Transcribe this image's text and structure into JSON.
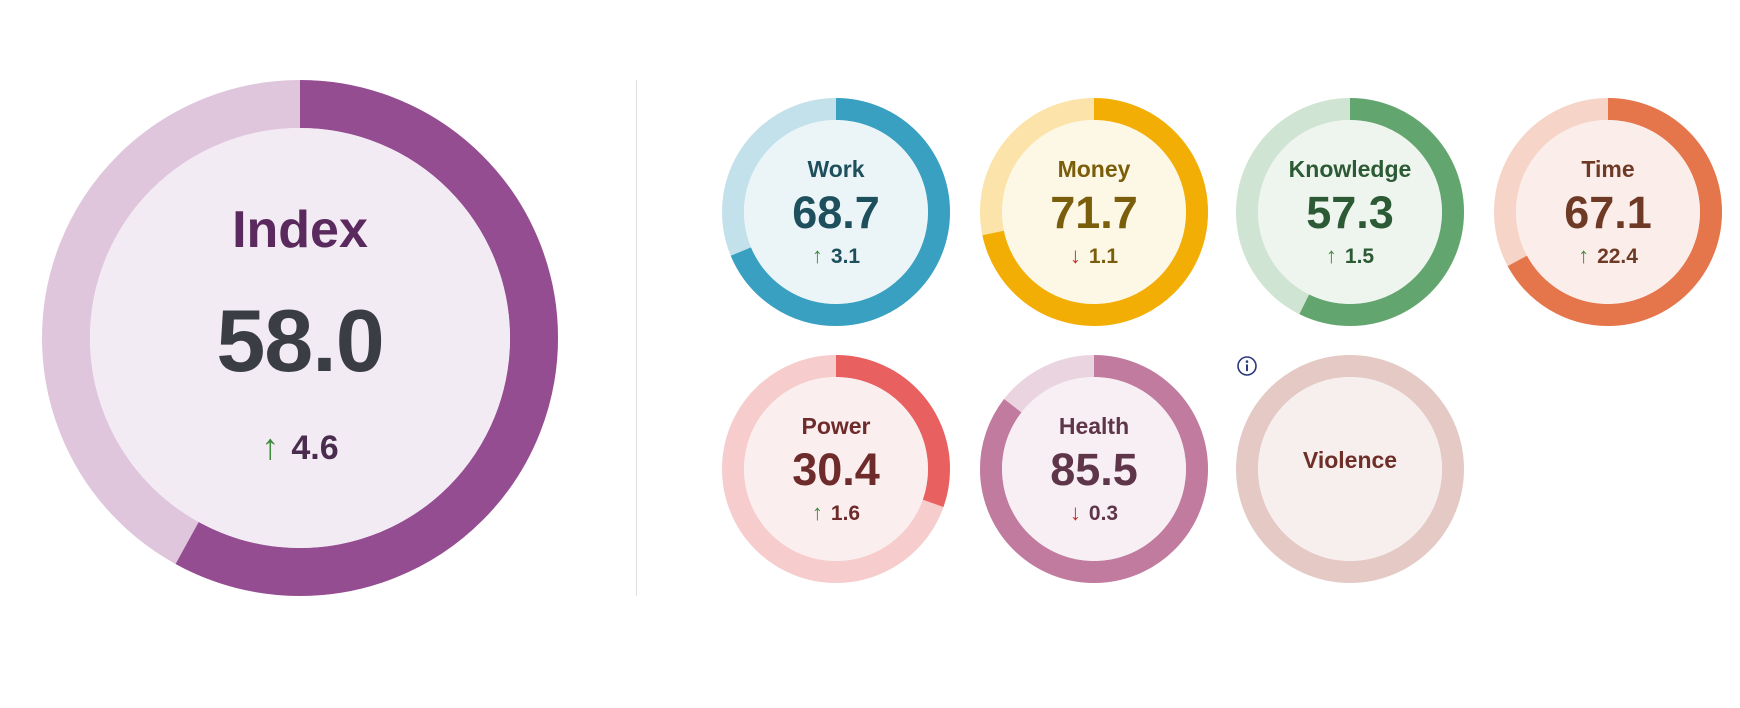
{
  "index": {
    "label": "Index",
    "value": "58.0",
    "delta_arrow": "↑",
    "delta": "4.6",
    "direction": "up",
    "fraction": 0.58,
    "colors": {
      "fill": "#954d92",
      "track": "#dfc6dd",
      "inner": "#f3ebf3"
    }
  },
  "domains": [
    {
      "label": "Work",
      "value": "68.7",
      "delta_arrow": "↑",
      "delta": "3.1",
      "direction": "up",
      "fraction": 0.687,
      "colors": {
        "fill": "#3aa0c1",
        "track": "#c2e1ea",
        "inner": "#ebf5f8",
        "text": "#1e4f5d"
      }
    },
    {
      "label": "Money",
      "value": "71.7",
      "delta_arrow": "↓",
      "delta": "1.1",
      "direction": "down",
      "fraction": 0.717,
      "colors": {
        "fill": "#f2ae04",
        "track": "#fbe3a9",
        "inner": "#fdf7e6",
        "text": "#7a5e0c"
      }
    },
    {
      "label": "Knowledge",
      "value": "57.3",
      "delta_arrow": "↑",
      "delta": "1.5",
      "direction": "up",
      "fraction": 0.573,
      "colors": {
        "fill": "#63a56f",
        "track": "#cfe4d2",
        "inner": "#eef5ef",
        "text": "#2c5a34"
      }
    },
    {
      "label": "Time",
      "value": "67.1",
      "delta_arrow": "↑",
      "delta": "22.4",
      "direction": "up",
      "fraction": 0.671,
      "colors": {
        "fill": "#e5764c",
        "track": "#f7d4c8",
        "inner": "#fbeeea",
        "text": "#6e3a26"
      }
    },
    {
      "label": "Power",
      "value": "30.4",
      "delta_arrow": "↑",
      "delta": "1.6",
      "direction": "up",
      "fraction": 0.304,
      "colors": {
        "fill": "#e86060",
        "track": "#f6cccc",
        "inner": "#fbeeee",
        "text": "#6e2b2b"
      }
    },
    {
      "label": "Health",
      "value": "85.5",
      "delta_arrow": "↓",
      "delta": "0.3",
      "direction": "down",
      "fraction": 0.855,
      "colors": {
        "fill": "#c17b9f",
        "track": "#ead4df",
        "inner": "#f7eff3",
        "text": "#5e3549"
      }
    },
    {
      "label": "Violence",
      "value": "",
      "delta_arrow": "",
      "delta": "",
      "direction": "none",
      "fraction": 0,
      "info_icon": "info-circle-icon",
      "colors": {
        "fill": "#e4c9c5",
        "track": "#e4c9c5",
        "inner": "#f7efee",
        "text": "#6e2f29"
      }
    }
  ],
  "arrow_colors": {
    "up": "#3f8b3f",
    "down": "#c82b24"
  }
}
